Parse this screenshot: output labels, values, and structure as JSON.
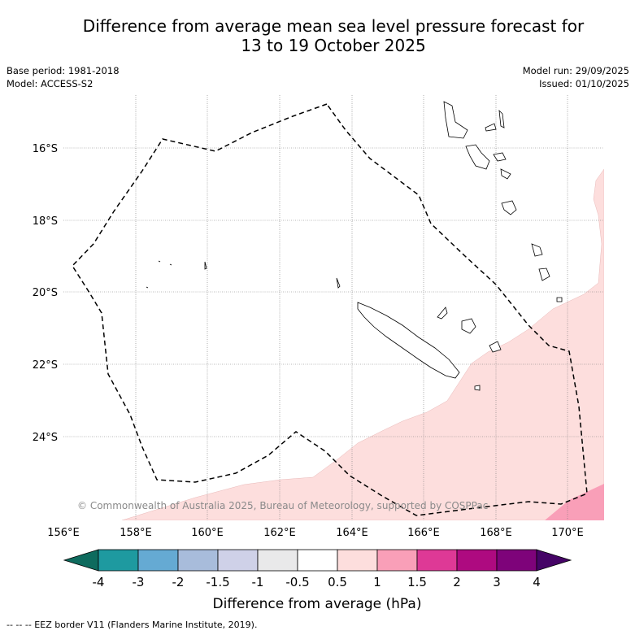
{
  "title_line1": "Difference from average mean sea level pressure forecast for",
  "title_line2": "13 to 19 October 2025",
  "base_period": "Base period: 1981-2018",
  "model": "Model: ACCESS-S2",
  "model_run": "Model run: 29/09/2025",
  "issued": "Issued: 01/10/2025",
  "copyright": "© Commonwealth of Australia 2025, Bureau of Meteorology, supported by COSPPac",
  "lon_labels": [
    "156°E",
    "158°E",
    "160°E",
    "162°E",
    "164°E",
    "166°E",
    "168°E",
    "170°E"
  ],
  "lat_labels": [
    "16°S",
    "18°S",
    "20°S",
    "22°S",
    "24°S"
  ],
  "colorbar": {
    "label": "Difference from average (hPa)",
    "ticks": [
      "-4",
      "-3",
      "-2",
      "-1.5",
      "-1",
      "-0.5",
      "0.5",
      "1",
      "1.5",
      "2",
      "3",
      "4"
    ],
    "colors": [
      "#0e6b5e",
      "#1e9aa0",
      "#65aad3",
      "#a8bcdb",
      "#cfd1e8",
      "#e9e9ea",
      "#ffffff",
      "#fddedd",
      "#f99fb8",
      "#de3996",
      "#ae0a80",
      "#7e037a",
      "#450466"
    ]
  },
  "footer": "-- -- -- EEZ border V11 (Flanders Marine Institute, 2019).",
  "chart_data": {
    "type": "map",
    "region_lon": [
      156,
      171
    ],
    "region_lat": [
      -26.2,
      -14.5
    ],
    "shaded_anomaly_bins": [
      "0.5 to 1 hPa (light pink) over south and east",
      "1 to 1.5 hPa (pink) in far south-east corner"
    ]
  }
}
